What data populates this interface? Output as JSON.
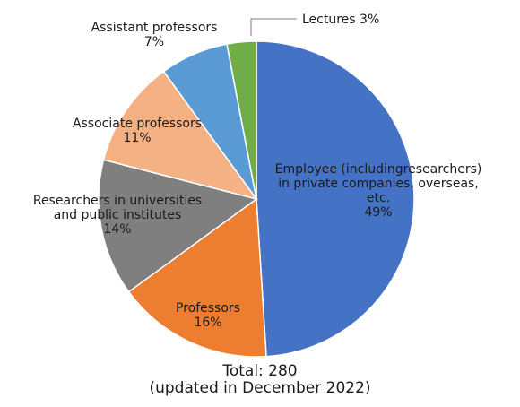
{
  "chart_data": {
    "type": "pie",
    "series": [
      {
        "slices": [
          {
            "name": "Employee (includingresearchers) in private companies, overseas, etc.",
            "lines": [
              "Employee (includingresearchers)",
              "in private companies, overseas,",
              "etc."
            ],
            "value": 49,
            "label": "49%",
            "color": "#4472C4"
          },
          {
            "name": "Professors",
            "lines": [
              "Professors"
            ],
            "value": 16,
            "label": "16%",
            "color": "#ED7D31"
          },
          {
            "name": "Researchers in universities and public institutes",
            "lines": [
              "Researchers in universities",
              "and public institutes"
            ],
            "value": 14,
            "label": "14%",
            "color": "#7F7F7F"
          },
          {
            "name": "Associate professors",
            "lines": [
              "Associate professors"
            ],
            "value": 11,
            "label": "11%",
            "color": "#F4B183"
          },
          {
            "name": "Assistant professors",
            "lines": [
              "Assistant professors"
            ],
            "value": 7,
            "label": "7%",
            "color": "#5B9BD5"
          },
          {
            "name": "Lectures",
            "lines": [
              "Lectures 3%"
            ],
            "value": 3,
            "label": "",
            "color": "#70AD47"
          }
        ]
      }
    ]
  },
  "footer": {
    "total": "Total: 280",
    "updated": "(updated in December 2022)"
  }
}
